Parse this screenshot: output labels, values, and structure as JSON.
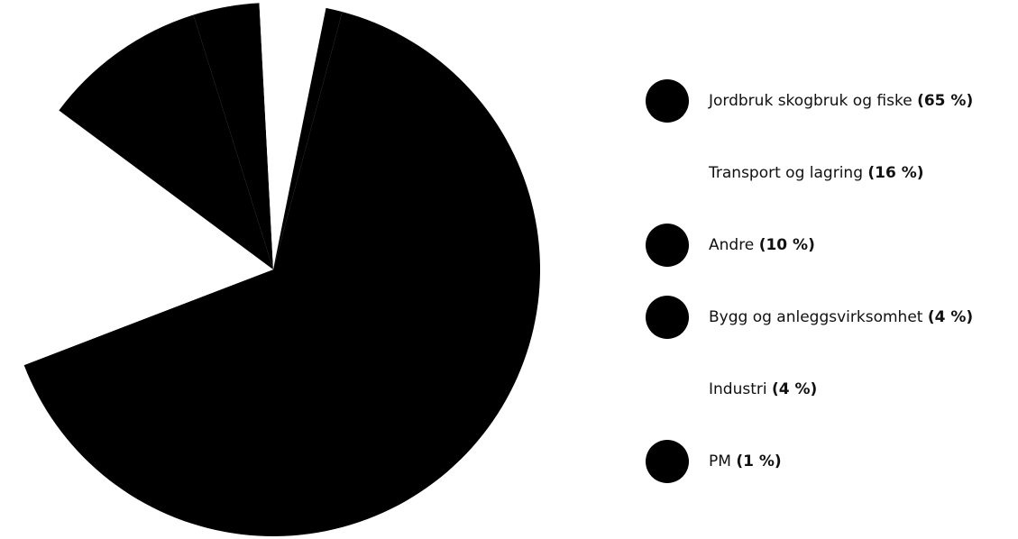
{
  "colors": {
    "slice": "#000000",
    "background": "#ffffff"
  },
  "chart_data": {
    "type": "pie",
    "title": "",
    "slices": [
      {
        "label": "Jordbruk skogbruk og fiske",
        "value": 65,
        "percent_text": "(65 %)",
        "color": "#000000",
        "shown": true
      },
      {
        "label": "Transport og lagring",
        "value": 16,
        "percent_text": "(16 %)",
        "color": "#ffffff",
        "shown": false
      },
      {
        "label": "Andre",
        "value": 10,
        "percent_text": "(10 %)",
        "color": "#000000",
        "shown": true
      },
      {
        "label": "Bygg og anleggsvirksomhet",
        "value": 4,
        "percent_text": "(4 %)",
        "color": "#000000",
        "shown": true
      },
      {
        "label": "Industri",
        "value": 4,
        "percent_text": "(4 %)",
        "color": "#ffffff",
        "shown": false
      },
      {
        "label": "PM",
        "value": 1,
        "percent_text": "(1 %)",
        "color": "#000000",
        "shown": true
      }
    ],
    "legend_position": "right"
  }
}
